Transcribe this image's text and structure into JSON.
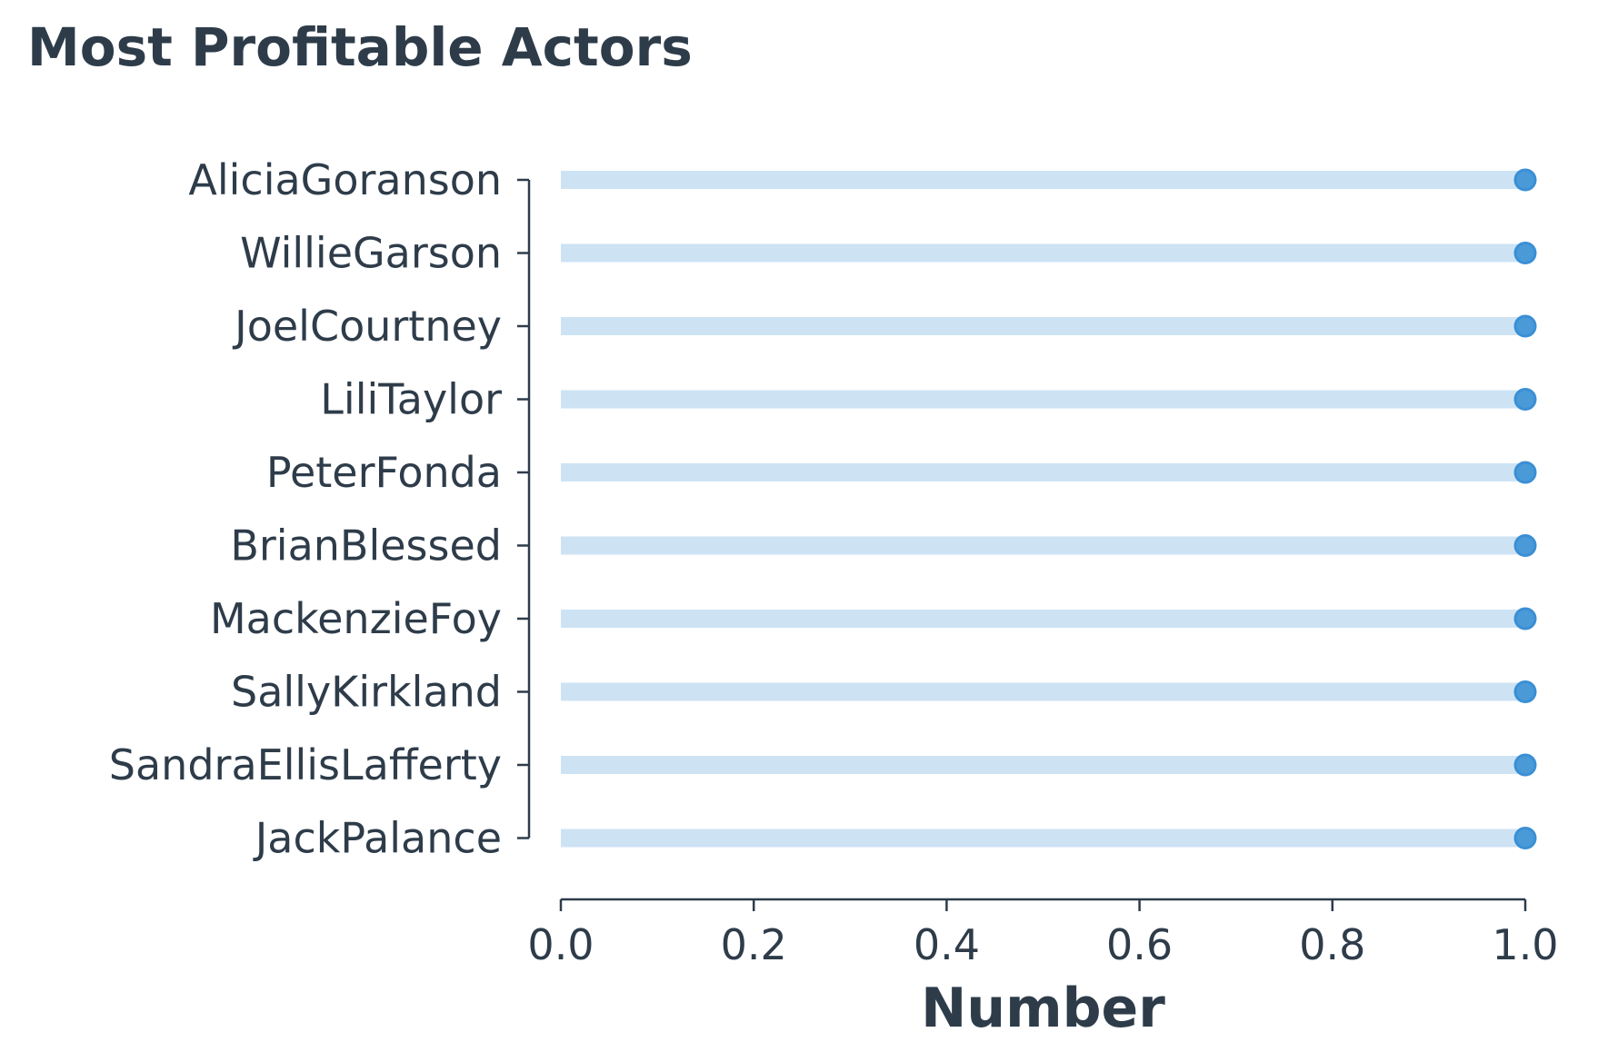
{
  "chart_data": {
    "type": "lollipop",
    "title": "Most Profitable Actors",
    "xlabel": "Number",
    "ylabel": "",
    "xlim": [
      0.0,
      1.0
    ],
    "xticks": [
      "0.0",
      "0.2",
      "0.4",
      "0.6",
      "0.8",
      "1.0"
    ],
    "categories": [
      "AliciaGoranson",
      "WillieGarson",
      "JoelCourtney",
      "LiliTaylor",
      "PeterFonda",
      "BrianBlessed",
      "MackenzieFoy",
      "SallyKirkland",
      "SandraEllisLafferty",
      "JackPalance"
    ],
    "values": [
      1,
      1,
      1,
      1,
      1,
      1,
      1,
      1,
      1,
      1
    ],
    "grid": false,
    "colors": {
      "stem": "#cde3f4",
      "marker_fill": "#4a9ad8",
      "marker_edge": "#3b8fd4",
      "text": "#2e3c4a"
    }
  }
}
